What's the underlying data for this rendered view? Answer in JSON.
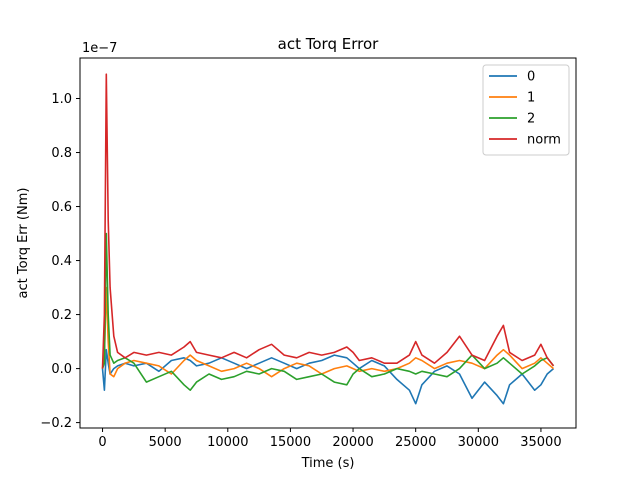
{
  "chart_data": {
    "type": "line",
    "title": "act Torq Error",
    "xlabel": "Time (s)",
    "ylabel": "act Torq Err (Nm)",
    "offset_text": "1e−7",
    "xlim": [
      -1800,
      37800
    ],
    "ylim": [
      -0.22,
      1.15
    ],
    "y_scale_factor": 1e-07,
    "xticks": [
      0,
      5000,
      10000,
      15000,
      20000,
      25000,
      30000,
      35000
    ],
    "yticks": [
      -0.2,
      0.0,
      0.2,
      0.4,
      0.6,
      0.8,
      1.0
    ],
    "ytick_labels": [
      "−0.2",
      "0.0",
      "0.2",
      "0.4",
      "0.6",
      "0.8",
      "1.0"
    ],
    "legend": {
      "position": "top-right",
      "entries": [
        "0",
        "1",
        "2",
        "norm"
      ]
    },
    "grid": false,
    "series": [
      {
        "name": "0",
        "color": "#1f77b4",
        "x": [
          0,
          150,
          300,
          450,
          600,
          900,
          1200,
          1800,
          2500,
          3500,
          4500,
          5500,
          6500,
          7000,
          7500,
          8500,
          9500,
          10500,
          11500,
          12500,
          13500,
          14500,
          15500,
          16500,
          17500,
          18500,
          19500,
          20000,
          20500,
          21500,
          22500,
          23500,
          24500,
          25000,
          25500,
          26500,
          27500,
          28500,
          29500,
          30500,
          31500,
          32000,
          32500,
          33500,
          34500,
          35000,
          35500,
          36000
        ],
        "values": [
          0.0,
          -0.08,
          0.07,
          0.02,
          -0.02,
          0.0,
          0.01,
          0.02,
          0.01,
          0.02,
          -0.01,
          0.03,
          0.04,
          0.03,
          0.01,
          0.02,
          0.04,
          0.02,
          0.0,
          0.02,
          0.04,
          0.02,
          0.0,
          0.02,
          0.03,
          0.05,
          0.04,
          0.02,
          0.0,
          0.03,
          0.01,
          -0.04,
          -0.08,
          -0.13,
          -0.06,
          -0.01,
          0.01,
          -0.02,
          -0.11,
          -0.05,
          -0.1,
          -0.13,
          -0.06,
          -0.02,
          -0.08,
          -0.06,
          -0.02,
          0.0
        ]
      },
      {
        "name": "1",
        "color": "#ff7f0e",
        "x": [
          0,
          150,
          300,
          450,
          600,
          900,
          1200,
          1800,
          2500,
          3500,
          4500,
          5500,
          6500,
          7000,
          7500,
          8500,
          9500,
          10500,
          11500,
          12500,
          13500,
          14500,
          15500,
          16500,
          17500,
          18500,
          19500,
          20000,
          20500,
          21500,
          22500,
          23500,
          24500,
          25000,
          25500,
          26500,
          27500,
          28500,
          29500,
          30500,
          31500,
          32000,
          32500,
          33500,
          34500,
          35000,
          35500,
          36000
        ],
        "values": [
          0.0,
          0.05,
          0.3,
          0.1,
          -0.02,
          -0.03,
          0.0,
          0.02,
          0.03,
          0.02,
          0.01,
          -0.02,
          0.03,
          0.05,
          0.03,
          0.01,
          -0.01,
          0.0,
          0.02,
          0.0,
          -0.03,
          0.0,
          0.02,
          0.01,
          -0.02,
          0.0,
          0.01,
          0.0,
          -0.01,
          0.0,
          -0.01,
          0.0,
          0.02,
          0.04,
          0.03,
          0.0,
          0.02,
          0.03,
          0.02,
          0.0,
          0.05,
          0.07,
          0.05,
          0.0,
          0.02,
          0.04,
          0.02,
          0.0
        ]
      },
      {
        "name": "2",
        "color": "#2ca02c",
        "x": [
          0,
          150,
          300,
          450,
          600,
          900,
          1200,
          1800,
          2500,
          3500,
          4500,
          5500,
          6500,
          7000,
          7500,
          8500,
          9500,
          10500,
          11500,
          12500,
          13500,
          14500,
          15500,
          16500,
          17500,
          18500,
          19500,
          20000,
          20500,
          21500,
          22500,
          23500,
          24500,
          25000,
          25500,
          26500,
          27500,
          28500,
          29500,
          30500,
          31500,
          32000,
          32500,
          33500,
          34500,
          35000,
          35500,
          36000
        ],
        "values": [
          0.0,
          0.02,
          0.5,
          0.2,
          0.05,
          0.02,
          0.03,
          0.04,
          0.02,
          -0.05,
          -0.03,
          -0.01,
          -0.06,
          -0.08,
          -0.05,
          -0.02,
          -0.04,
          -0.03,
          -0.01,
          -0.02,
          0.0,
          -0.01,
          -0.04,
          -0.03,
          -0.02,
          -0.05,
          -0.06,
          -0.02,
          0.0,
          -0.03,
          -0.02,
          0.0,
          -0.01,
          -0.02,
          -0.01,
          -0.02,
          -0.03,
          0.0,
          0.05,
          0.0,
          0.02,
          0.04,
          0.02,
          -0.02,
          0.01,
          0.03,
          0.04,
          0.01
        ]
      },
      {
        "name": "norm",
        "color": "#d62728",
        "x": [
          0,
          150,
          300,
          450,
          600,
          900,
          1200,
          1800,
          2500,
          3500,
          4500,
          5500,
          6500,
          7000,
          7500,
          8500,
          9500,
          10500,
          11500,
          12500,
          13500,
          14500,
          15500,
          16500,
          17500,
          18500,
          19500,
          20000,
          20500,
          21500,
          22500,
          23500,
          24500,
          25000,
          25500,
          26500,
          27500,
          28500,
          29500,
          30500,
          31500,
          32000,
          32500,
          33500,
          34500,
          35000,
          35500,
          36000
        ],
        "values": [
          0.0,
          0.2,
          1.09,
          0.55,
          0.3,
          0.12,
          0.06,
          0.04,
          0.06,
          0.05,
          0.06,
          0.05,
          0.08,
          0.1,
          0.06,
          0.05,
          0.04,
          0.06,
          0.04,
          0.07,
          0.09,
          0.05,
          0.04,
          0.06,
          0.05,
          0.06,
          0.08,
          0.06,
          0.03,
          0.04,
          0.02,
          0.02,
          0.05,
          0.1,
          0.05,
          0.02,
          0.06,
          0.12,
          0.05,
          0.03,
          0.12,
          0.16,
          0.06,
          0.03,
          0.05,
          0.09,
          0.04,
          0.01
        ]
      }
    ]
  }
}
